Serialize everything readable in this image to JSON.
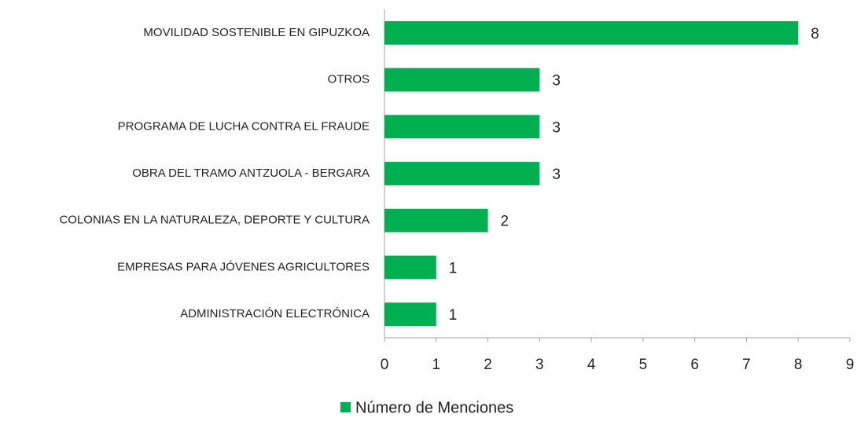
{
  "chart_data": {
    "type": "bar",
    "orientation": "horizontal",
    "categories": [
      "MOVILIDAD SOSTENIBLE EN GIPUZKOA",
      "OTROS",
      "PROGRAMA DE LUCHA CONTRA EL FRAUDE",
      "OBRA DEL TRAMO ANTZUOLA - BERGARA",
      "COLONIAS EN LA NATURALEZA, DEPORTE Y CULTURA",
      "EMPRESAS PARA JÓVENES AGRICULTORES",
      "ADMINISTRACIÓN ELECTRÓNICA"
    ],
    "series": [
      {
        "name": "Número de Menciones",
        "color": "#00b050",
        "values": [
          8,
          3,
          3,
          3,
          2,
          1,
          1
        ]
      }
    ],
    "xlim": [
      0,
      9
    ],
    "xticks": [
      0,
      1,
      2,
      3,
      4,
      5,
      6,
      7,
      8,
      9
    ],
    "grid": false,
    "legend": "bottom"
  }
}
